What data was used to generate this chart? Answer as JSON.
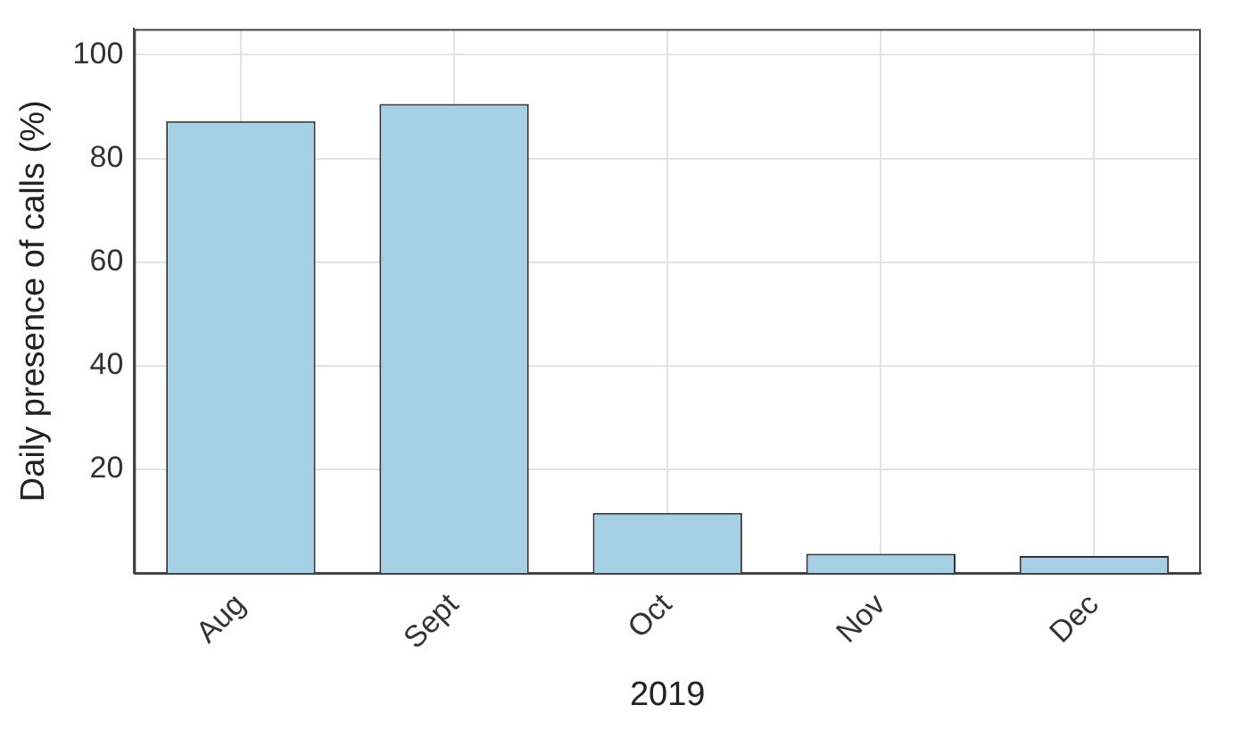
{
  "chart_data": {
    "type": "bar",
    "xlabel": "2019",
    "ylabel": "Daily presence of calls (%)",
    "categories": [
      "Aug",
      "Sept",
      "Oct",
      "Nov",
      "Dec"
    ],
    "values": [
      87.2,
      90.5,
      11.6,
      3.7,
      3.3
    ],
    "color": "#a6d0e6",
    "ylim": [
      0,
      105
    ],
    "yticks": [
      20,
      40,
      60,
      80,
      100
    ],
    "grid": true
  }
}
